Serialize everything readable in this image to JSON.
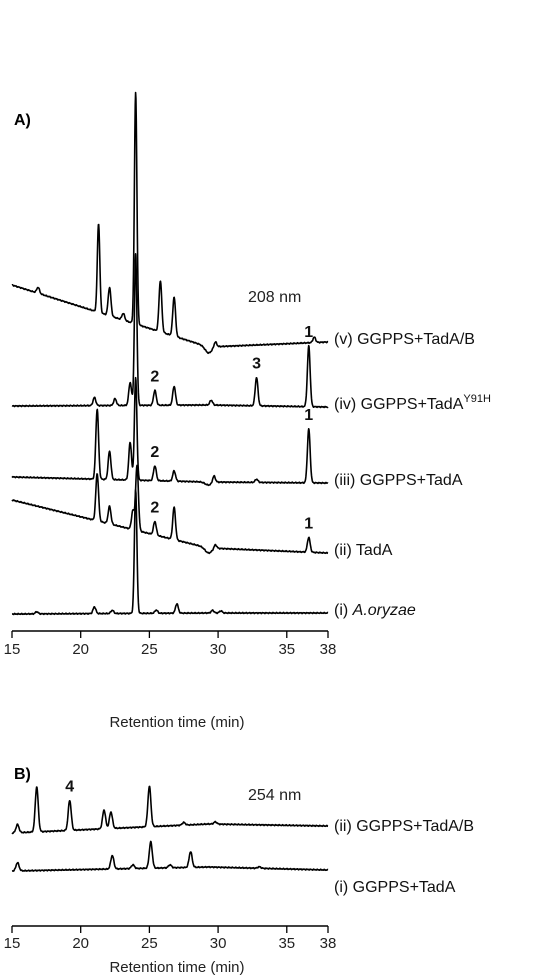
{
  "chart_data": [
    {
      "type": "line",
      "panel_label": "A)",
      "wavelength": "208 nm",
      "xlabel": "Retention time (min)",
      "xlim": [
        15,
        38
      ],
      "xticks": [
        15,
        20,
        25,
        30,
        35,
        38
      ],
      "series": [
        {
          "label": "(i) A.oryzae",
          "label_parts": [
            "(i) ",
            "A.oryzae",
            ""
          ],
          "label_style": "italic-organism",
          "peaks": [
            {
              "x": 16.8,
              "h": 0.08
            },
            {
              "x": 21.0,
              "h": 0.25
            },
            {
              "x": 22.3,
              "h": 0.12
            },
            {
              "x": 24.0,
              "h": 4.6
            },
            {
              "x": 25.5,
              "h": 0.12
            },
            {
              "x": 27.0,
              "h": 0.35
            },
            {
              "x": 29.6,
              "h": 0.1
            },
            {
              "x": 30.2,
              "h": 0.08
            }
          ],
          "peak_labels": []
        },
        {
          "label": "(ii) TadA",
          "label_parts": [
            "(ii) TadA",
            "",
            ""
          ],
          "label_style": "plain",
          "peaks": [
            {
              "x": 21.2,
              "h": 1.75
            },
            {
              "x": 22.1,
              "h": 0.65
            },
            {
              "x": 23.8,
              "h": 0.7
            },
            {
              "x": 24.1,
              "h": 2.4
            },
            {
              "x": 25.4,
              "h": 0.5
            },
            {
              "x": 26.8,
              "h": 1.2
            },
            {
              "x": 29.8,
              "h": 0.15
            },
            {
              "x": 36.6,
              "h": 0.55
            }
          ],
          "peak_labels": [
            {
              "text": "2",
              "x": 25.4
            },
            {
              "text": "1",
              "x": 36.6
            }
          ]
        },
        {
          "label": "(iii) GGPPS+TadA",
          "label_parts": [
            "(iii) GGPPS+TadA",
            "",
            ""
          ],
          "label_style": "plain",
          "peaks": [
            {
              "x": 21.2,
              "h": 2.6
            },
            {
              "x": 22.1,
              "h": 1.05
            },
            {
              "x": 23.6,
              "h": 1.4
            },
            {
              "x": 24.0,
              "h": 3.8
            },
            {
              "x": 25.4,
              "h": 0.55
            },
            {
              "x": 26.8,
              "h": 0.38
            },
            {
              "x": 29.7,
              "h": 0.25
            },
            {
              "x": 32.8,
              "h": 0.12
            },
            {
              "x": 36.6,
              "h": 2.0
            }
          ],
          "peak_labels": [
            {
              "text": "2",
              "x": 25.4
            },
            {
              "text": "1",
              "x": 36.6
            }
          ]
        },
        {
          "label": "(iv) GGPPS+TadAY91H",
          "label_parts": [
            "(iv) GGPPS+TadA",
            "Y91H",
            ""
          ],
          "label_style": "superscript",
          "peaks": [
            {
              "x": 21.0,
              "h": 0.3
            },
            {
              "x": 22.5,
              "h": 0.25
            },
            {
              "x": 23.6,
              "h": 0.85
            },
            {
              "x": 24.0,
              "h": 5.6
            },
            {
              "x": 25.4,
              "h": 0.55
            },
            {
              "x": 26.8,
              "h": 0.7
            },
            {
              "x": 29.5,
              "h": 0.18
            },
            {
              "x": 32.8,
              "h": 1.05
            },
            {
              "x": 36.6,
              "h": 2.25
            }
          ],
          "peak_labels": [
            {
              "text": "2",
              "x": 25.4
            },
            {
              "text": "3",
              "x": 32.8
            },
            {
              "text": "1",
              "x": 36.6
            }
          ]
        },
        {
          "label": "(v) GGPPS+TadA/B",
          "label_parts": [
            "(v) GGPPS+TadA/B",
            "",
            ""
          ],
          "label_style": "plain",
          "peaks": [
            {
              "x": 16.9,
              "h": 0.22
            },
            {
              "x": 21.3,
              "h": 3.3
            },
            {
              "x": 22.1,
              "h": 1.05
            },
            {
              "x": 23.1,
              "h": 0.25
            },
            {
              "x": 24.0,
              "h": 8.6
            },
            {
              "x": 25.8,
              "h": 1.9
            },
            {
              "x": 26.8,
              "h": 1.45
            },
            {
              "x": 29.8,
              "h": 0.2
            },
            {
              "x": 37.0,
              "h": 0.2
            }
          ],
          "peak_labels": []
        }
      ]
    },
    {
      "type": "line",
      "panel_label": "B)",
      "wavelength": "254 nm",
      "xlabel": "Retention time (min)",
      "xlim": [
        15,
        38
      ],
      "xticks": [
        15,
        20,
        25,
        30,
        35,
        38
      ],
      "series": [
        {
          "label": "(i) GGPPS+TadA",
          "label_parts": [
            "(i) GGPPS+TadA",
            "",
            ""
          ],
          "label_style": "plain",
          "peaks": [
            {
              "x": 15.4,
              "h": 0.55
            },
            {
              "x": 22.3,
              "h": 0.9
            },
            {
              "x": 23.8,
              "h": 0.25
            },
            {
              "x": 25.1,
              "h": 1.75
            },
            {
              "x": 26.5,
              "h": 0.2
            },
            {
              "x": 28.0,
              "h": 1.05
            },
            {
              "x": 33.0,
              "h": 0.1
            }
          ],
          "peak_labels": []
        },
        {
          "label": "(ii) GGPPS+TadA/B",
          "label_parts": [
            "(ii) GGPPS+TadA/B",
            "",
            ""
          ],
          "label_style": "plain",
          "peaks": [
            {
              "x": 15.4,
              "h": 0.55
            },
            {
              "x": 16.8,
              "h": 3.0
            },
            {
              "x": 19.2,
              "h": 2.0
            },
            {
              "x": 21.7,
              "h": 1.25
            },
            {
              "x": 22.2,
              "h": 1.1
            },
            {
              "x": 25.0,
              "h": 2.7
            },
            {
              "x": 27.5,
              "h": 0.18
            },
            {
              "x": 29.8,
              "h": 0.15
            }
          ],
          "peak_labels": [
            {
              "text": "4",
              "x": 19.2
            }
          ]
        }
      ]
    }
  ]
}
